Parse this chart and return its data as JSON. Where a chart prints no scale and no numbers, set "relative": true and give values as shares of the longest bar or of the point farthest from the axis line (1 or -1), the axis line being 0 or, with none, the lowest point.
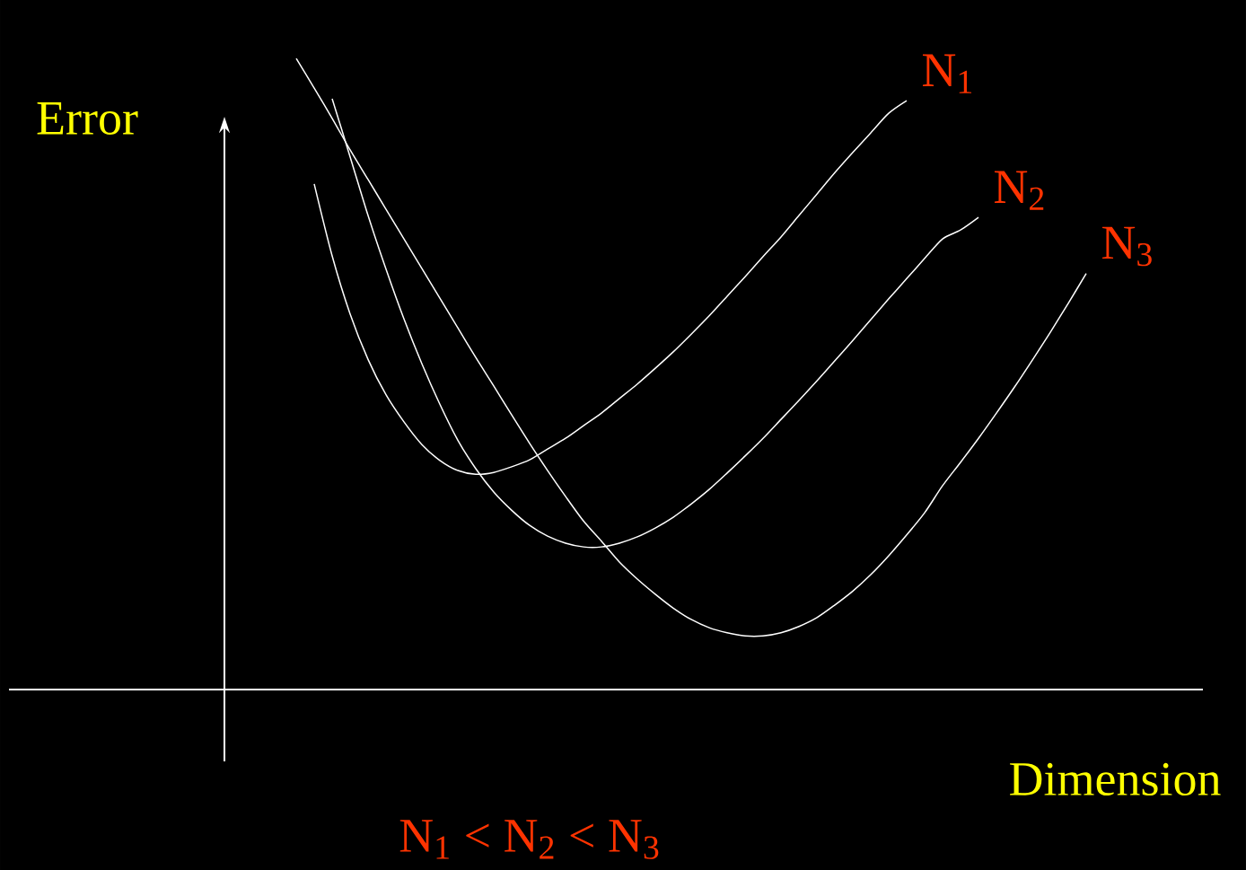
{
  "chart_data": {
    "type": "line",
    "relative": true,
    "xlabel": "Dimension",
    "ylabel": "Error",
    "annotations": [
      "N$_{1}$ <  N$_{2}$ < N$_{3}$"
    ],
    "categories": [
      null,
      null,
      null,
      null,
      null,
      null,
      null,
      null,
      null,
      null,
      null,
      null,
      null,
      null,
      null,
      null,
      null,
      null,
      null,
      null,
      null,
      null,
      null,
      null,
      null,
      null,
      null,
      null,
      null,
      null,
      null,
      null,
      null,
      null,
      null,
      null,
      null,
      null,
      null,
      null,
      null,
      null,
      null,
      null,
      null
    ],
    "series": [
      {
        "name": "N$_{1}$",
        "color": "#ffffff",
        "values": [
          null,
          0.801,
          0.687,
          0.595,
          0.523,
          0.467,
          0.424,
          0.388,
          0.363,
          0.347,
          0.341,
          0.344,
          0.353,
          0.364,
          0.381,
          0.398,
          0.418,
          0.438,
          0.461,
          0.484,
          0.509,
          0.535,
          0.563,
          0.592,
          0.623,
          0.654,
          0.686,
          0.717,
          0.751,
          0.785,
          0.819,
          0.851,
          0.882,
          0.913,
          0.933,
          null,
          null,
          null,
          null,
          null,
          null,
          null,
          null,
          null,
          null
        ]
      },
      {
        "name": "N$_{2}$",
        "color": "#ffffff",
        "values": [
          null,
          null,
          0.936,
          0.844,
          0.751,
          0.666,
          0.587,
          0.516,
          0.452,
          0.395,
          0.35,
          0.313,
          0.284,
          0.26,
          0.243,
          0.232,
          0.226,
          0.226,
          0.232,
          0.242,
          0.256,
          0.273,
          0.294,
          0.317,
          0.343,
          0.37,
          0.398,
          0.428,
          0.458,
          0.489,
          0.521,
          0.553,
          0.586,
          0.619,
          0.651,
          0.683,
          0.714,
          0.728,
          0.748,
          null,
          null,
          null,
          null,
          null,
          null
        ]
      },
      {
        "name": "N$_{3}$",
        "color": "#ffffff",
        "values": [
          1.0,
          0.953,
          0.905,
          0.855,
          0.808,
          0.761,
          0.714,
          0.667,
          0.62,
          0.573,
          0.526,
          0.481,
          0.435,
          0.39,
          0.347,
          0.306,
          0.267,
          0.235,
          0.202,
          0.175,
          0.151,
          0.129,
          0.111,
          0.098,
          0.09,
          0.085,
          0.085,
          0.09,
          0.1,
          0.114,
          0.134,
          0.156,
          0.182,
          0.212,
          0.245,
          0.28,
          0.323,
          0.36,
          0.398,
          0.438,
          0.479,
          0.522,
          0.566,
          0.612,
          0.659
        ]
      }
    ]
  }
}
